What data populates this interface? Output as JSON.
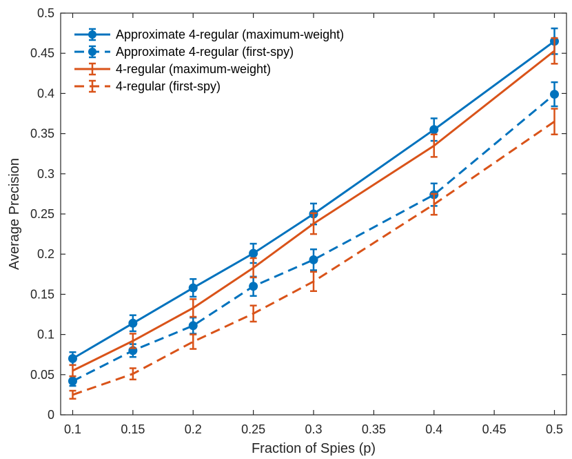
{
  "chart_data": {
    "type": "line",
    "title": "",
    "xlabel": "Fraction of Spies (p)",
    "ylabel": "Average Precision",
    "xlim": [
      0.09,
      0.51
    ],
    "ylim": [
      0,
      0.5
    ],
    "x_ticks": [
      "0.1",
      "0.15",
      "0.2",
      "0.25",
      "0.3",
      "0.35",
      "0.4",
      "0.45",
      "0.5"
    ],
    "y_ticks": [
      "0",
      "0.05",
      "0.1",
      "0.15",
      "0.2",
      "0.25",
      "0.3",
      "0.35",
      "0.4",
      "0.45",
      "0.5"
    ],
    "x_tick_values": [
      0.1,
      0.15,
      0.2,
      0.25,
      0.3,
      0.35,
      0.4,
      0.45,
      0.5
    ],
    "y_tick_values": [
      0,
      0.05,
      0.1,
      0.15,
      0.2,
      0.25,
      0.3,
      0.35,
      0.4,
      0.45,
      0.5
    ],
    "grid": false,
    "legend_position": "top-left",
    "series": [
      {
        "name": "Approximate 4-regular (maximum-weight)",
        "color": "#0072BD",
        "line_style": "solid",
        "marker": "circle",
        "x": [
          0.1,
          0.15,
          0.2,
          0.25,
          0.3,
          0.4,
          0.5
        ],
        "y": [
          0.07,
          0.114,
          0.158,
          0.201,
          0.25,
          0.355,
          0.465
        ],
        "err": [
          0.008,
          0.01,
          0.011,
          0.012,
          0.013,
          0.014,
          0.016
        ]
      },
      {
        "name": "Approximate 4-regular (first-spy)",
        "color": "#0072BD",
        "line_style": "dashed",
        "marker": "circle",
        "x": [
          0.1,
          0.15,
          0.2,
          0.25,
          0.3,
          0.4,
          0.5
        ],
        "y": [
          0.042,
          0.08,
          0.111,
          0.16,
          0.193,
          0.274,
          0.399
        ],
        "err": [
          0.006,
          0.008,
          0.01,
          0.012,
          0.013,
          0.014,
          0.015
        ]
      },
      {
        "name": "4-regular (maximum-weight)",
        "color": "#D95319",
        "line_style": "solid",
        "marker": "none",
        "x": [
          0.1,
          0.15,
          0.2,
          0.25,
          0.3,
          0.4,
          0.5
        ],
        "y": [
          0.055,
          0.092,
          0.133,
          0.183,
          0.238,
          0.335,
          0.453
        ],
        "err": [
          0.007,
          0.009,
          0.011,
          0.012,
          0.013,
          0.014,
          0.016
        ]
      },
      {
        "name": "4-regular (first-spy)",
        "color": "#D95319",
        "line_style": "dashed",
        "marker": "none",
        "x": [
          0.1,
          0.15,
          0.2,
          0.25,
          0.3,
          0.4,
          0.5
        ],
        "y": [
          0.025,
          0.051,
          0.091,
          0.126,
          0.166,
          0.262,
          0.365
        ],
        "err": [
          0.005,
          0.007,
          0.009,
          0.01,
          0.012,
          0.013,
          0.016
        ]
      }
    ]
  }
}
